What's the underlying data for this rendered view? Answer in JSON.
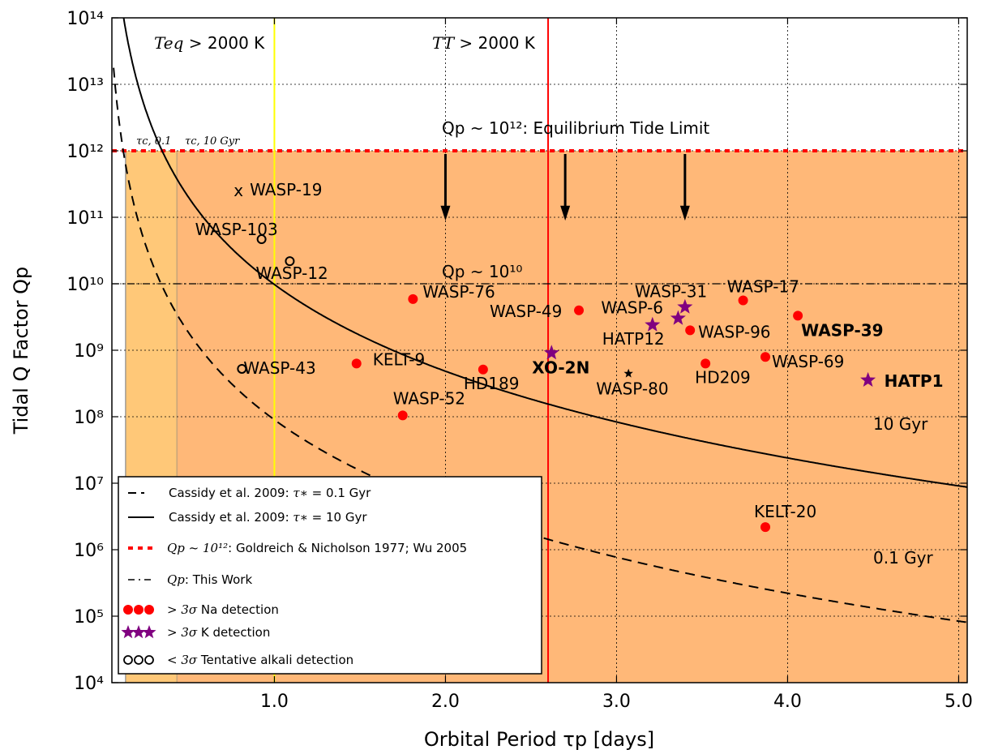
{
  "chart_data": {
    "type": "scatter",
    "xlabel": "Orbital Period τp [days]",
    "ylabel": "Tidal Q Factor Qp",
    "xlim": [
      0.05,
      5.05
    ],
    "ylim_log10": [
      4,
      14
    ],
    "x_ticks": [
      "1.0",
      "2.0",
      "3.0",
      "4.0",
      "5.0"
    ],
    "y_ticks": [
      "10⁴",
      "10⁵",
      "10⁶",
      "10⁷",
      "10⁸",
      "10⁹",
      "10¹⁰",
      "10¹¹",
      "10¹²",
      "10¹³",
      "10¹⁴"
    ],
    "grid": true,
    "legend_position": "lower-left",
    "colors": {
      "shade_outer": "#ffc878",
      "shade_inner": "#ffb878",
      "na": "#ff0000",
      "k": "#800080",
      "yellow_line": "#ffff00",
      "red_line": "#ff0000"
    },
    "regions": [
      {
        "name": "teq",
        "x": 1.0,
        "label": "Teq > 2000 K"
      },
      {
        "name": "tt",
        "x": 2.6,
        "label": "TT > 2000 K"
      }
    ],
    "tau_labels": {
      "tau01": "τc, 0.1",
      "tau10": "τc, 10 Gyr",
      "tau01_x": 0.13,
      "tau10_x": 0.43
    },
    "annotations": {
      "eq_tide": "Qp ~ 10¹²: Equilibrium Tide Limit",
      "this_work": "Qp ~ 10¹⁰",
      "gyr10": "10 Gyr",
      "gyr01": "0.1 Gyr"
    },
    "down_arrows_x": [
      2.0,
      2.7,
      3.4
    ],
    "cassidy_curves": [
      {
        "name": "10 Gyr",
        "style": "solid",
        "c": 9750000000.0
      },
      {
        "name": "0.1 Gyr",
        "style": "dashed",
        "c": 90000000.0
      }
    ],
    "points": [
      {
        "name": "WASP-19",
        "x": 0.79,
        "log_q": 11.4,
        "marker": "x",
        "bold": false
      },
      {
        "name": "WASP-103",
        "x": 0.925,
        "log_q": 10.67,
        "marker": "circle-open",
        "bold": false
      },
      {
        "name": "WASP-12",
        "x": 1.09,
        "log_q": 10.34,
        "marker": "circle-open",
        "bold": false
      },
      {
        "name": "WASP-43",
        "x": 0.81,
        "log_q": 8.72,
        "marker": "circle-open",
        "bold": false
      },
      {
        "name": "WASP-76",
        "x": 1.81,
        "log_q": 9.77,
        "marker": "na",
        "bold": false
      },
      {
        "name": "KELT-9",
        "x": 1.48,
        "log_q": 8.8,
        "marker": "na",
        "bold": false
      },
      {
        "name": "WASP-52",
        "x": 1.75,
        "log_q": 8.02,
        "marker": "na",
        "bold": false
      },
      {
        "name": "HD189",
        "x": 2.22,
        "log_q": 8.71,
        "marker": "na",
        "bold": false
      },
      {
        "name": "XO-2N",
        "x": 2.62,
        "log_q": 8.96,
        "marker": "k",
        "bold": true
      },
      {
        "name": "WASP-49",
        "x": 2.78,
        "log_q": 9.6,
        "marker": "na",
        "bold": false
      },
      {
        "name": "HATP12",
        "x": 3.21,
        "log_q": 9.38,
        "marker": "k",
        "bold": false
      },
      {
        "name": "WASP-6",
        "x": 3.36,
        "log_q": 9.48,
        "marker": "k",
        "bold": false
      },
      {
        "name": "WASP-31",
        "x": 3.4,
        "log_q": 9.65,
        "marker": "k",
        "bold": false
      },
      {
        "name": "WASP-96",
        "x": 3.43,
        "log_q": 9.3,
        "marker": "na",
        "bold": false
      },
      {
        "name": "WASP-80",
        "x": 3.07,
        "log_q": 8.65,
        "marker": "star-black",
        "bold": false
      },
      {
        "name": "HD209",
        "x": 3.52,
        "log_q": 8.8,
        "marker": "na",
        "bold": false
      },
      {
        "name": "WASP-17",
        "x": 3.74,
        "log_q": 9.75,
        "marker": "na",
        "bold": false
      },
      {
        "name": "WASP-69",
        "x": 3.87,
        "log_q": 8.9,
        "marker": "na",
        "bold": false
      },
      {
        "name": "WASP-39",
        "x": 4.06,
        "log_q": 9.52,
        "marker": "na",
        "bold": true
      },
      {
        "name": "HATP1",
        "x": 4.47,
        "log_q": 8.55,
        "marker": "k",
        "bold": true
      },
      {
        "name": "KELT-20",
        "x": 3.87,
        "log_q": 6.34,
        "marker": "na",
        "bold": false
      }
    ]
  },
  "legend": {
    "items": [
      {
        "name": "cassidy-01",
        "pre": "Cassidy et al. 2009: ",
        "sym": "τ∗",
        "post": " = 0.1 Gyr"
      },
      {
        "name": "cassidy-10",
        "pre": "Cassidy et al. 2009: ",
        "sym": "τ∗",
        "post": " = 10 Gyr"
      },
      {
        "name": "goldreich",
        "pre": "",
        "sym": "Qp ~ 10¹²",
        "post": ": Goldreich & Nicholson 1977; Wu 2005"
      },
      {
        "name": "this-work",
        "pre": "",
        "sym": "Qp",
        "post": ": This Work"
      },
      {
        "name": "na-detection",
        "pre": "",
        "sym": "> 3σ",
        "post": " Na detection"
      },
      {
        "name": "k-detection",
        "pre": "",
        "sym": "> 3σ",
        "post": " K detection"
      },
      {
        "name": "tentative",
        "pre": "",
        "sym": "< 3σ",
        "post": " Tentative alkali detection"
      }
    ]
  }
}
